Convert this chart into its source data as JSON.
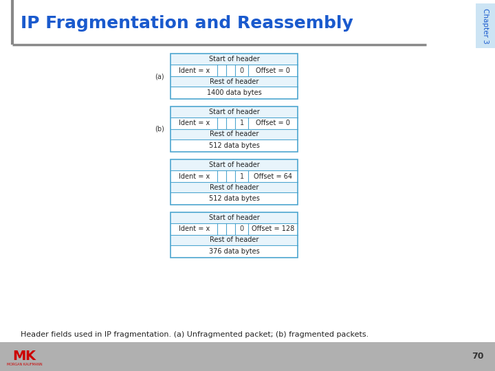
{
  "title": "IP Fragmentation and Reassembly",
  "title_color": "#1a5acd",
  "title_fontsize": 18,
  "chapter_label": "Chapter 3",
  "chapter_color": "#1a5acd",
  "bg_color": "#ffffff",
  "header_line_color": "#888888",
  "box_edge_color": "#4da6d0",
  "box_fill_color": "#ffffff",
  "inner_fill": "#e8f4fb",
  "footer_text": "Header fields used in IP fragmentation. (a) Unfragmented packet; (b) fragmented packets.",
  "footer_fontsize": 8,
  "page_number": "70",
  "packets": [
    {
      "label": "(a)",
      "ident": "Ident = x",
      "flag": "0",
      "offset": "Offset = 0",
      "rest": "Rest of header",
      "data": "1400 data bytes"
    },
    {
      "label": "(b)",
      "ident": "Ident = x",
      "flag": "1",
      "offset": "Offset = 0",
      "rest": "Rest of header",
      "data": "512 data bytes"
    },
    {
      "label": "",
      "ident": "Ident = x",
      "flag": "1",
      "offset": "Offset = 64",
      "rest": "Rest of header",
      "data": "512 data bytes"
    },
    {
      "label": "",
      "ident": "Ident = x",
      "flag": "0",
      "offset": "Offset = 128",
      "rest": "Rest of header",
      "data": "376 data bytes"
    }
  ]
}
